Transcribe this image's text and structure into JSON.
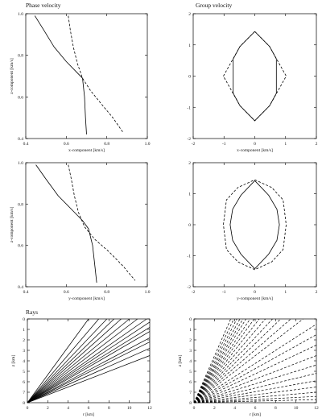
{
  "sections": {
    "phase": "Phase velocity",
    "group": "Group velocity",
    "rays": "Rays"
  },
  "chart_data": [
    {
      "id": "phase-xz",
      "type": "line",
      "xlabel": "x-component [km/s]",
      "ylabel": "z-component [km/s]",
      "xlim": [
        0.4,
        1.0
      ],
      "ylim": [
        0.4,
        1.0
      ],
      "xticks": [
        "0.4",
        "0.6",
        "0.8",
        "1.0"
      ],
      "yticks": [
        "0.4",
        "0.6",
        "0.8",
        "1.0"
      ],
      "series": [
        {
          "style": "solid",
          "x": [
            0.445,
            0.49,
            0.54,
            0.6,
            0.65,
            0.68,
            0.69,
            0.695,
            0.7
          ],
          "y": [
            0.99,
            0.92,
            0.84,
            0.77,
            0.72,
            0.69,
            0.6,
            0.5,
            0.42
          ]
        },
        {
          "style": "dashed",
          "x": [
            0.61,
            0.62,
            0.635,
            0.655,
            0.68,
            0.72,
            0.77,
            0.83,
            0.88
          ],
          "y": [
            0.99,
            0.92,
            0.84,
            0.76,
            0.69,
            0.63,
            0.57,
            0.5,
            0.43
          ]
        }
      ]
    },
    {
      "id": "group-xz",
      "type": "line",
      "xlabel": "x-component [km/s]",
      "ylabel": "",
      "xlim": [
        -2,
        2
      ],
      "ylim": [
        -2,
        2
      ],
      "xticks": [
        "-2",
        "-1",
        "0",
        "1",
        "2"
      ],
      "yticks": [
        "-2",
        "-1",
        "0",
        "1",
        "2"
      ],
      "series": [
        {
          "style": "solid",
          "x": [
            0,
            0.48,
            0.7,
            0.7,
            0.48,
            0,
            -0.48,
            -0.7,
            -0.7,
            -0.48,
            0
          ],
          "y": [
            1.43,
            0.95,
            0.55,
            -0.55,
            -0.95,
            -1.43,
            -0.95,
            -0.55,
            0.55,
            0.95,
            1.43
          ]
        },
        {
          "style": "dashed",
          "x": [
            0,
            0.48,
            1.02,
            0.48,
            0,
            -0.48,
            -1.02,
            -0.48,
            0
          ],
          "y": [
            1.43,
            0.95,
            0,
            -0.95,
            -1.43,
            -0.95,
            0,
            0.95,
            1.43
          ]
        }
      ]
    },
    {
      "id": "phase-yz",
      "type": "line",
      "xlabel": "y-component [km/s]",
      "ylabel": "z-component [km/s]",
      "xlim": [
        0.4,
        1.0
      ],
      "ylim": [
        0.4,
        1.0
      ],
      "xticks": [
        "0.4",
        "0.6",
        "0.8",
        "1.0"
      ],
      "yticks": [
        "0.4",
        "0.6",
        "0.8",
        "1.0"
      ],
      "series": [
        {
          "style": "solid",
          "x": [
            0.45,
            0.5,
            0.56,
            0.63,
            0.68,
            0.71,
            0.73,
            0.74,
            0.75
          ],
          "y": [
            0.99,
            0.92,
            0.84,
            0.77,
            0.72,
            0.68,
            0.6,
            0.51,
            0.42
          ]
        },
        {
          "style": "dashed",
          "x": [
            0.61,
            0.625,
            0.64,
            0.66,
            0.69,
            0.74,
            0.81,
            0.88,
            0.94
          ],
          "y": [
            0.99,
            0.92,
            0.84,
            0.76,
            0.69,
            0.63,
            0.57,
            0.5,
            0.43
          ]
        }
      ]
    },
    {
      "id": "group-yz",
      "type": "line",
      "xlabel": "y-component [km/s]",
      "ylabel": "",
      "xlim": [
        -2,
        2
      ],
      "ylim": [
        -2,
        2
      ],
      "xticks": [
        "-2",
        "-1",
        "0",
        "1",
        "2"
      ],
      "yticks": [
        "-2",
        "-1",
        "0",
        "1",
        "2"
      ],
      "series": [
        {
          "style": "solid",
          "x": [
            0,
            0.45,
            0.72,
            0.8,
            0.72,
            0.45,
            0,
            -0.45,
            -0.72,
            -0.8,
            -0.72,
            -0.45,
            0
          ],
          "y": [
            1.42,
            0.95,
            0.5,
            0,
            -0.5,
            -0.95,
            -1.42,
            -0.95,
            -0.5,
            0,
            0.5,
            0.95,
            1.42
          ]
        },
        {
          "style": "dashed",
          "x": [
            0,
            0.55,
            0.92,
            1.02,
            0.92,
            0.55,
            0,
            -0.55,
            -0.92,
            -1.02,
            -0.92,
            -0.55,
            0
          ],
          "y": [
            1.45,
            1.2,
            0.8,
            0,
            -0.8,
            -1.2,
            -1.45,
            -1.2,
            -0.8,
            0,
            0.8,
            1.2,
            1.45
          ]
        }
      ]
    },
    {
      "id": "rays-solid",
      "type": "line",
      "xlabel": "r [km]",
      "ylabel": "z [km]",
      "xlim": [
        0,
        12
      ],
      "ylim": [
        8,
        0
      ],
      "xticks": [
        "0",
        "2",
        "4",
        "6",
        "8",
        "10",
        "12"
      ],
      "yticks": [
        "0",
        "1",
        "2",
        "3",
        "4",
        "5",
        "6",
        "7",
        "8"
      ],
      "origin": [
        0,
        8
      ],
      "rays_end": [
        [
          6,
          0
        ],
        [
          7,
          0
        ],
        [
          7.8,
          0
        ],
        [
          8.5,
          0
        ],
        [
          9.2,
          0
        ],
        [
          10,
          0
        ],
        [
          10.8,
          0
        ],
        [
          11.7,
          0
        ],
        [
          12,
          0.3
        ],
        [
          12,
          0.8
        ],
        [
          12,
          1.2
        ],
        [
          12,
          1.8
        ],
        [
          12,
          2.2
        ],
        [
          12,
          2.8
        ],
        [
          12,
          3.5
        ]
      ]
    },
    {
      "id": "rays-dashed",
      "type": "line",
      "xlabel": "r [km]",
      "ylabel": "z [km]",
      "xlim": [
        0,
        12
      ],
      "ylim": [
        8,
        0
      ],
      "xticks": [
        "0",
        "2",
        "4",
        "6",
        "8",
        "10",
        "12"
      ],
      "yticks": [
        "0",
        "1",
        "2",
        "3",
        "4",
        "5",
        "6",
        "7",
        "8"
      ],
      "origin": [
        0,
        8
      ],
      "rays_end": [
        [
          3.6,
          0
        ],
        [
          3.9,
          0
        ],
        [
          4.2,
          0
        ],
        [
          4.5,
          0
        ],
        [
          4.8,
          0
        ],
        [
          5.1,
          0
        ],
        [
          5.5,
          0
        ],
        [
          5.9,
          0
        ],
        [
          6.4,
          0
        ],
        [
          7,
          0
        ],
        [
          7.7,
          0
        ],
        [
          8.5,
          0
        ],
        [
          9.5,
          0
        ],
        [
          10.7,
          0
        ],
        [
          12,
          0.5
        ],
        [
          12,
          1.5
        ],
        [
          12,
          2.5
        ],
        [
          12,
          3.5
        ],
        [
          12,
          4.4
        ],
        [
          12,
          5.2
        ],
        [
          12,
          5.9
        ],
        [
          12,
          6.5
        ],
        [
          12,
          7
        ],
        [
          12,
          7.4
        ],
        [
          12,
          7.7
        ]
      ]
    }
  ]
}
